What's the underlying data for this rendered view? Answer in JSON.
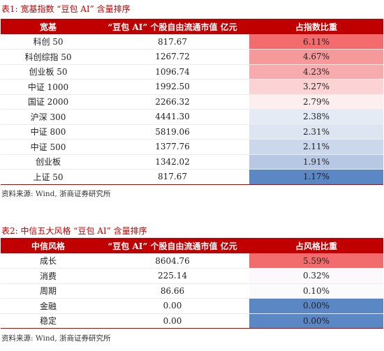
{
  "table1": {
    "caption": "表1:  宽基指数 “豆包 AI” 含量排序",
    "headers": [
      "宽基",
      "“豆包 AI” 个股自由流通市值  亿元",
      "占指数比重"
    ],
    "rows": [
      {
        "name": "科创 50",
        "value": "817.67",
        "pct": "6.11%",
        "color": "#f26b6d"
      },
      {
        "name": "科创综指 50",
        "value": "1267.72",
        "pct": "4.67%",
        "color": "#f6999a"
      },
      {
        "name": "创业板 50",
        "value": "1096.74",
        "pct": "4.23%",
        "color": "#f8abac"
      },
      {
        "name": "中证 1000",
        "value": "1992.50",
        "pct": "3.27%",
        "color": "#fbd3d4"
      },
      {
        "name": "国证 2000",
        "value": "2266.32",
        "pct": "2.79%",
        "color": "#fdeeef"
      },
      {
        "name": "沪深 300",
        "value": "4441.30",
        "pct": "2.38%",
        "color": "#e4ebf5"
      },
      {
        "name": "中证 800",
        "value": "5819.06",
        "pct": "2.31%",
        "color": "#dde5f2"
      },
      {
        "name": "中证 500",
        "value": "1377.76",
        "pct": "2.11%",
        "color": "#cbd8ec"
      },
      {
        "name": "创业板",
        "value": "1342.02",
        "pct": "1.91%",
        "color": "#b7c8e5"
      },
      {
        "name": "上证 50",
        "value": "817.67",
        "pct": "1.17%",
        "color": "#5b87c5"
      }
    ],
    "source": "资料来源:  Wind, 浙商证券研究所"
  },
  "table2": {
    "caption": "表2:  中信五大风格 “豆包 AI” 含量排序",
    "headers": [
      "中信风格",
      "“豆包 AI” 个股自由流通市值  亿元",
      "占风格比重"
    ],
    "rows": [
      {
        "name": "成长",
        "value": "8604.76",
        "pct": "5.59%",
        "color": "#f26b6d"
      },
      {
        "name": "消费",
        "value": "225.14",
        "pct": "0.32%",
        "color": "#fbf9fc"
      },
      {
        "name": "周期",
        "value": "86.66",
        "pct": "0.10%",
        "color": "#fbfbfd"
      },
      {
        "name": "金融",
        "value": "0.00",
        "pct": "0.00%",
        "color": "#5b87c5"
      },
      {
        "name": "稳定",
        "value": "0.00",
        "pct": "0.00%",
        "color": "#5b87c5"
      }
    ],
    "source": "资料来源:  Wind, 浙商证券研究所"
  }
}
